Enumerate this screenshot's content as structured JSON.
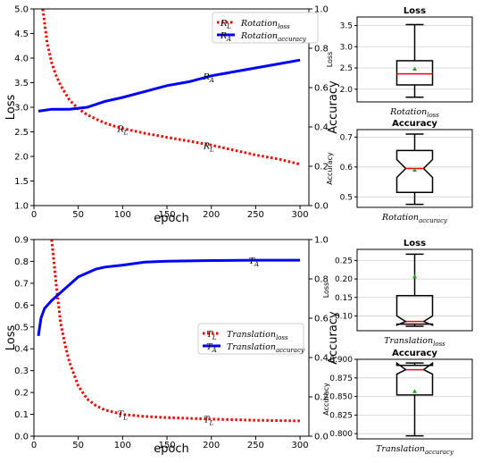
{
  "chart_data": [
    {
      "type": "line",
      "id": "rotation",
      "xlabel": "epoch",
      "ylabel": "Loss",
      "y2label": "Accuracy",
      "xlim": [
        0,
        310
      ],
      "ylim": [
        1.0,
        5.0
      ],
      "y2lim": [
        0.0,
        1.0
      ],
      "xticks": [
        0,
        50,
        100,
        150,
        200,
        250,
        300
      ],
      "yticks": [
        1.0,
        1.5,
        2.0,
        2.5,
        3.0,
        3.5,
        4.0,
        4.5,
        5.0
      ],
      "y2ticks": [
        0.0,
        0.2,
        0.4,
        0.6,
        0.8,
        1.0
      ],
      "legend_position": "top-center",
      "series": [
        {
          "name": "Rotation_loss",
          "legend_main": "Rotation",
          "legend_sub": "loss",
          "axis": "left",
          "color": "#ff0000",
          "style": "dotted",
          "x": [
            10,
            15,
            20,
            25,
            30,
            40,
            50,
            60,
            70,
            80,
            90,
            100,
            125,
            150,
            175,
            200,
            225,
            250,
            275,
            300
          ],
          "y": [
            5.0,
            4.3,
            3.9,
            3.65,
            3.45,
            3.15,
            2.97,
            2.85,
            2.76,
            2.68,
            2.62,
            2.57,
            2.47,
            2.39,
            2.31,
            2.23,
            2.13,
            2.03,
            1.95,
            1.84
          ]
        },
        {
          "name": "Rotation_accuracy",
          "legend_main": "Rotation",
          "legend_sub": "accuracy",
          "axis": "right",
          "color": "#0000ff",
          "style": "solid",
          "x": [
            5,
            20,
            40,
            60,
            80,
            100,
            125,
            150,
            175,
            200,
            225,
            250,
            275,
            300
          ],
          "y": [
            0.48,
            0.49,
            0.49,
            0.5,
            0.53,
            0.55,
            0.58,
            0.61,
            0.63,
            0.66,
            0.68,
            0.7,
            0.72,
            0.74
          ]
        }
      ],
      "annotations": [
        {
          "main": "R",
          "sub": "L",
          "x": 100,
          "y": 2.57,
          "axis": "left",
          "color": "#ff0000"
        },
        {
          "main": "R",
          "sub": "L",
          "x": 197,
          "y": 2.23,
          "axis": "left",
          "color": "#ff0000"
        },
        {
          "main": "R",
          "sub": "A",
          "x": 197,
          "y": 0.66,
          "axis": "right",
          "color": "#0000ff"
        }
      ]
    },
    {
      "type": "line",
      "id": "translation",
      "xlabel": "epoch",
      "ylabel": "Loss",
      "y2label": "Accuracy",
      "xlim": [
        0,
        310
      ],
      "ylim": [
        0.0,
        0.9
      ],
      "y2lim": [
        0.0,
        1.0
      ],
      "xticks": [
        0,
        50,
        100,
        150,
        200,
        250,
        300
      ],
      "yticks": [
        0.0,
        0.1,
        0.2,
        0.3,
        0.4,
        0.5,
        0.6,
        0.7,
        0.8,
        0.9
      ],
      "y2ticks": [
        0.0,
        0.2,
        0.4,
        0.6,
        0.8,
        1.0
      ],
      "legend_position": "center-right",
      "series": [
        {
          "name": "Translation_loss",
          "legend_main": "Translation",
          "legend_sub": "loss",
          "axis": "left",
          "color": "#ff0000",
          "style": "dotted",
          "x": [
            20,
            25,
            30,
            35,
            40,
            50,
            60,
            70,
            80,
            90,
            100,
            125,
            150,
            200,
            250,
            300
          ],
          "y": [
            0.9,
            0.7,
            0.52,
            0.42,
            0.34,
            0.23,
            0.17,
            0.14,
            0.12,
            0.11,
            0.1,
            0.09,
            0.085,
            0.078,
            0.073,
            0.07
          ]
        },
        {
          "name": "Translation_accuracy",
          "legend_main": "Translation",
          "legend_sub": "accuracy",
          "axis": "right",
          "color": "#0000ff",
          "style": "solid",
          "x": [
            5,
            8,
            12,
            20,
            30,
            40,
            50,
            60,
            70,
            80,
            100,
            125,
            150,
            200,
            250,
            300
          ],
          "y": [
            0.51,
            0.6,
            0.65,
            0.69,
            0.73,
            0.77,
            0.81,
            0.83,
            0.85,
            0.86,
            0.87,
            0.885,
            0.89,
            0.893,
            0.895,
            0.895
          ]
        }
      ],
      "annotations": [
        {
          "main": "T",
          "sub": "L",
          "x": 100,
          "y": 0.105,
          "axis": "left",
          "color": "#ff0000"
        },
        {
          "main": "T",
          "sub": "L",
          "x": 197,
          "y": 0.08,
          "axis": "left",
          "color": "#ff0000"
        },
        {
          "main": "T",
          "sub": "A",
          "x": 248,
          "y": 0.895,
          "axis": "right",
          "color": "#0000ff"
        }
      ]
    },
    {
      "type": "box",
      "id": "rot-loss-box",
      "title": "Loss",
      "ylabel": "Loss",
      "xlabel_main": "Rotation",
      "xlabel_sub": "loss",
      "ylim": [
        1.7,
        3.7
      ],
      "yticks": [
        2.0,
        2.5,
        3.0,
        3.5
      ],
      "notched": false,
      "whisker_low": 1.81,
      "q1": 2.1,
      "median": 2.36,
      "q3": 2.67,
      "whisker_high": 3.52,
      "mean": 2.48
    },
    {
      "type": "box",
      "id": "rot-acc-box",
      "title": "Accuracy",
      "ylabel": "Accuracy",
      "xlabel_main": "Rotation",
      "xlabel_sub": "accuracy",
      "ylim": [
        0.465,
        0.725
      ],
      "yticks": [
        0.5,
        0.6,
        0.7
      ],
      "notched": true,
      "notch_low": 0.565,
      "notch_high": 0.625,
      "whisker_low": 0.475,
      "q1": 0.515,
      "median": 0.595,
      "q3": 0.655,
      "whisker_high": 0.71,
      "mean": 0.59
    },
    {
      "type": "box",
      "id": "trans-loss-box",
      "title": "Loss",
      "ylabel": "Loss",
      "xlabel_main": "Translation",
      "xlabel_sub": "loss",
      "ylim": [
        0.06,
        0.28
      ],
      "yticks": [
        0.1,
        0.15,
        0.2,
        0.25
      ],
      "notched": true,
      "notch_low": 0.075,
      "notch_high": 0.1,
      "whisker_low": 0.072,
      "q1": 0.078,
      "median": 0.085,
      "q3": 0.155,
      "whisker_high": 0.267,
      "mean": 0.207
    },
    {
      "type": "box",
      "id": "trans-acc-box",
      "title": "Accuracy",
      "ylabel": "Accuracy",
      "xlabel_main": "Translation",
      "xlabel_sub": "accuracy",
      "ylim": [
        0.793,
        0.9
      ],
      "yticks": [
        0.8,
        0.825,
        0.85,
        0.875,
        0.9
      ],
      "notched": true,
      "notch_low": 0.88,
      "notch_high": 0.895,
      "whisker_low": 0.797,
      "q1": 0.852,
      "median": 0.886,
      "q3": 0.892,
      "whisker_high": 0.895,
      "mean": 0.857
    }
  ]
}
